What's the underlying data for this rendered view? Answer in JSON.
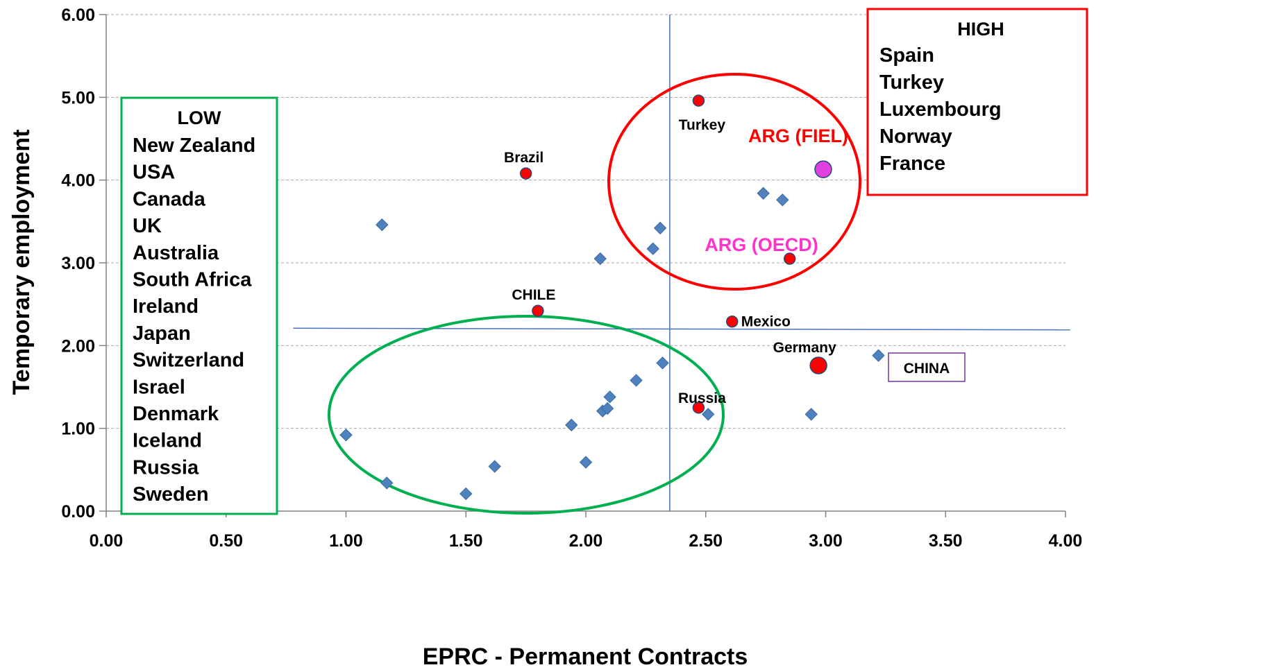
{
  "chart_data": {
    "type": "scatter",
    "xlabel": "EPRC - Permanent Contracts",
    "ylabel": "Temporary employment",
    "xlim": [
      0,
      4
    ],
    "ylim": [
      0,
      6
    ],
    "x_ticks": [
      "0.00",
      "0.50",
      "1.00",
      "1.50",
      "2.00",
      "2.50",
      "3.00",
      "3.50",
      "4.00"
    ],
    "y_ticks": [
      "0.00",
      "1.00",
      "2.00",
      "3.00",
      "4.00",
      "5.00",
      "6.00"
    ],
    "grid": "horizontal dashed",
    "colors": {
      "diamond": "#4F81BD",
      "highlight": "#FF0000",
      "arg_fiel": "#FF0000",
      "arg_oecd": "#FF33CC",
      "arg_oecd_marker": "#E040E0",
      "low_box": "#00B050",
      "high_box": "#FF0000",
      "china_box": "#7030A0",
      "reference_line": "#4472C4"
    },
    "series": [
      {
        "marker": "diamond",
        "points": [
          [
            1.0,
            0.92
          ],
          [
            1.15,
            3.46
          ],
          [
            1.17,
            0.34
          ],
          [
            1.5,
            0.21
          ],
          [
            1.62,
            0.54
          ],
          [
            1.94,
            1.04
          ],
          [
            2.0,
            0.59
          ],
          [
            2.06,
            3.05
          ],
          [
            2.07,
            1.21
          ],
          [
            2.09,
            1.24
          ],
          [
            2.1,
            1.38
          ],
          [
            2.21,
            1.58
          ],
          [
            2.28,
            3.17
          ],
          [
            2.31,
            3.42
          ],
          [
            2.32,
            1.79
          ],
          [
            2.51,
            1.17
          ],
          [
            2.74,
            3.84
          ],
          [
            2.82,
            3.76
          ],
          [
            2.94,
            1.17
          ],
          [
            3.22,
            1.88
          ]
        ]
      },
      {
        "marker": "circle",
        "points": [
          {
            "x": 1.75,
            "y": 4.08,
            "label": "Brazil"
          },
          {
            "x": 1.8,
            "y": 2.42,
            "label": "CHILE"
          },
          {
            "x": 2.47,
            "y": 4.96,
            "label": "Turkey"
          },
          {
            "x": 2.47,
            "y": 1.25,
            "label": "Russia"
          },
          {
            "x": 2.61,
            "y": 2.29,
            "label": "Mexico"
          },
          {
            "x": 2.85,
            "y": 3.05,
            "label": ""
          },
          {
            "x": 2.97,
            "y": 1.76,
            "label": "Germany"
          },
          {
            "x": 2.99,
            "y": 4.13,
            "label": ""
          }
        ]
      }
    ],
    "annotations": {
      "arg_fiel": "ARG (FIEL)",
      "arg_oecd": "ARG (OECD)",
      "china": "CHINA"
    },
    "reference_lines": {
      "vertical_x": 2.35,
      "horizontal": {
        "x_start": 0.78,
        "y_start": 2.21,
        "x_end": 4.02,
        "y_end": 2.19
      }
    },
    "groups": {
      "low": {
        "title": "LOW",
        "items": [
          "New Zealand",
          "USA",
          "Canada",
          "UK",
          "Australia",
          "South Africa",
          "Ireland",
          "Japan",
          "Switzerland",
          "Israel",
          "Denmark",
          "Iceland",
          "Russia",
          "Sweden"
        ]
      },
      "high": {
        "title": "HIGH",
        "items": [
          "Spain",
          "Turkey",
          "Luxembourg",
          "Norway",
          "France"
        ]
      }
    }
  }
}
